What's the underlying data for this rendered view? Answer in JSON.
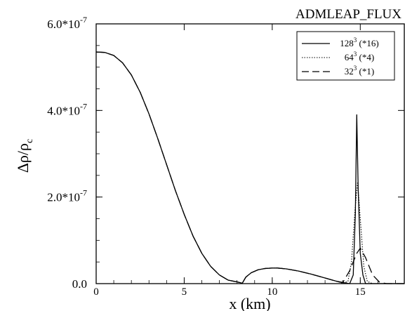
{
  "chart_data": {
    "type": "line",
    "title": "ADMLEAP_FLUX",
    "xlabel": "x (km)",
    "ylabel": "Δρ/ρ",
    "ylabel_sub": "c",
    "xlim": [
      0,
      17.5
    ],
    "ylim": [
      0,
      6e-07
    ],
    "x_ticks": [
      {
        "value": 0,
        "label": "0"
      },
      {
        "value": 5,
        "label": "5"
      },
      {
        "value": 10,
        "label": "10"
      },
      {
        "value": 15,
        "label": "15"
      }
    ],
    "y_ticks": [
      {
        "value": 0,
        "label": "0.0",
        "exp": ""
      },
      {
        "value": 2e-07,
        "label": "2.0*10",
        "exp": "-7"
      },
      {
        "value": 4e-07,
        "label": "4.0*10",
        "exp": "-7"
      },
      {
        "value": 6e-07,
        "label": "6.0*10",
        "exp": "-7"
      }
    ],
    "grid": false,
    "legend_position": "top-right",
    "series": [
      {
        "name": "128",
        "name_sup": "3",
        "name_suffix": " (*16)",
        "style": "solid",
        "x": [
          0,
          0.5,
          1,
          1.5,
          2,
          2.5,
          3,
          3.5,
          4,
          4.5,
          5,
          5.5,
          6,
          6.5,
          7,
          7.5,
          8,
          8.3,
          8.5,
          8.8,
          9.2,
          9.6,
          10,
          10.3,
          10.8,
          11.5,
          12.2,
          13,
          13.6,
          14.1,
          14.4,
          14.6,
          14.72,
          14.8,
          14.88,
          15.0,
          15.15,
          15.3,
          15.6,
          16,
          17.5
        ],
        "y": [
          5.35e-07,
          5.34e-07,
          5.27e-07,
          5.1e-07,
          4.82e-07,
          4.42e-07,
          3.92e-07,
          3.35e-07,
          2.75e-07,
          2.15e-07,
          1.6e-07,
          1.1e-07,
          7e-08,
          4e-08,
          2e-08,
          8e-09,
          4e-09,
          1e-09,
          1.5e-08,
          2.5e-08,
          3.2e-08,
          3.5e-08,
          3.6e-08,
          3.6e-08,
          3.4e-08,
          2.9e-08,
          2.2e-08,
          1.3e-08,
          6e-09,
          2e-09,
          0,
          2e-08,
          1.6e-07,
          3.9e-07,
          2.2e-07,
          7e-08,
          2e-08,
          0,
          0,
          0,
          0
        ]
      },
      {
        "name": "64",
        "name_sup": "3",
        "name_suffix": " (*4)",
        "style": "dotted",
        "x": [
          0,
          0.5,
          1,
          1.5,
          2,
          2.5,
          3,
          3.5,
          4,
          4.5,
          5,
          5.5,
          6,
          6.5,
          7,
          7.5,
          8,
          8.3,
          8.5,
          8.8,
          9.2,
          9.6,
          10,
          10.3,
          10.8,
          11.5,
          12.2,
          13,
          13.6,
          14.0,
          14.3,
          14.5,
          14.7,
          14.85,
          15.0,
          15.2,
          15.4,
          15.7,
          16,
          17.5
        ],
        "y": [
          5.35e-07,
          5.34e-07,
          5.27e-07,
          5.1e-07,
          4.82e-07,
          4.42e-07,
          3.92e-07,
          3.35e-07,
          2.75e-07,
          2.15e-07,
          1.6e-07,
          1.1e-07,
          7e-08,
          4e-08,
          2e-08,
          8e-09,
          4e-09,
          1e-09,
          1.5e-08,
          2.5e-08,
          3.2e-08,
          3.5e-08,
          3.6e-08,
          3.6e-08,
          3.4e-08,
          2.9e-08,
          2.2e-08,
          1.3e-08,
          6e-09,
          1e-09,
          5e-09,
          5e-08,
          1.7e-07,
          2.35e-07,
          1.5e-07,
          4e-08,
          5e-09,
          0,
          0,
          0
        ]
      },
      {
        "name": "32",
        "name_sup": "3",
        "name_suffix": " (*1)",
        "style": "dashed",
        "x": [
          0,
          0.5,
          1,
          1.5,
          2,
          2.5,
          3,
          3.5,
          4,
          4.5,
          5,
          5.5,
          6,
          6.5,
          7,
          7.5,
          8,
          8.3,
          8.5,
          8.8,
          9.2,
          9.6,
          10,
          10.3,
          10.8,
          11.5,
          12.2,
          13,
          13.6,
          14.0,
          14.4,
          14.8,
          15.0,
          15.3,
          15.7,
          16.1,
          16.5,
          17.5
        ],
        "y": [
          5.35e-07,
          5.34e-07,
          5.27e-07,
          5.1e-07,
          4.82e-07,
          4.42e-07,
          3.92e-07,
          3.35e-07,
          2.75e-07,
          2.15e-07,
          1.6e-07,
          1.1e-07,
          7e-08,
          4e-08,
          2e-08,
          8e-09,
          4e-09,
          1e-09,
          1.5e-08,
          2.5e-08,
          3.2e-08,
          3.5e-08,
          3.6e-08,
          3.6e-08,
          3.4e-08,
          2.9e-08,
          2.2e-08,
          1.3e-08,
          6e-09,
          2e-09,
          3e-08,
          7e-08,
          8.2e-08,
          6e-08,
          2e-08,
          3e-09,
          0,
          0
        ]
      }
    ]
  }
}
